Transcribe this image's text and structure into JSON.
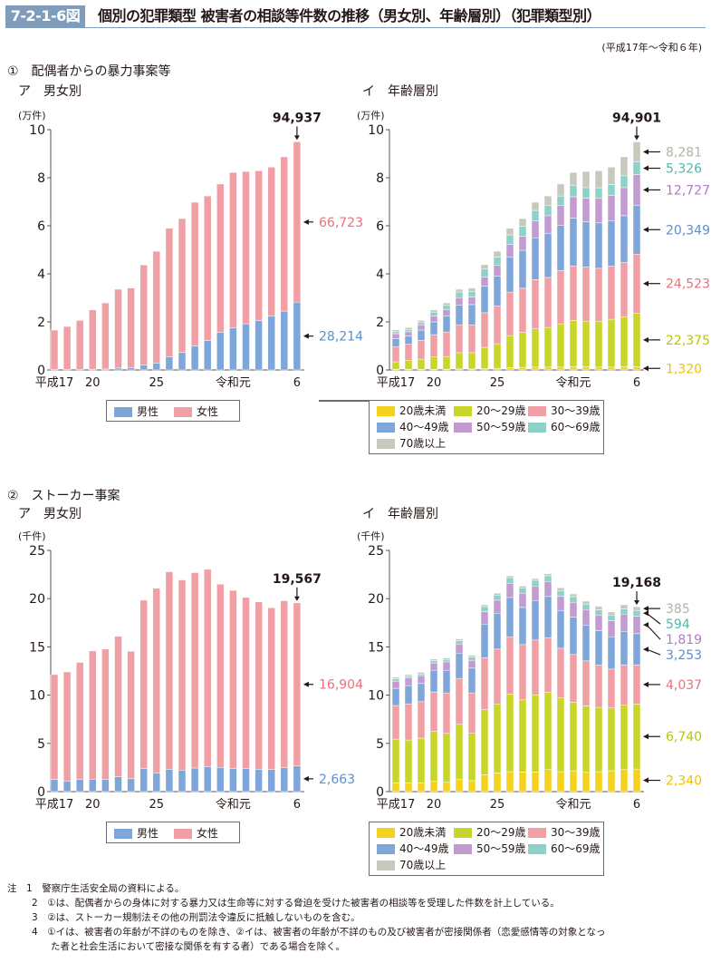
{
  "header": {
    "figure_number": "7-2-1-6図",
    "title": "個別の犯罪類型 被害者の相談等件数の推移（男女別、年齢層別）（犯罪類型別）",
    "period": "(平成17年～令和６年)"
  },
  "sections": [
    {
      "label": "①　配偶者からの暴力事案等",
      "left_sub": "ア　男女別",
      "right_sub": "イ　年齢層別"
    },
    {
      "label": "②　ストーカー事案",
      "left_sub": "ア　男女別",
      "right_sub": "イ　年齢層別"
    }
  ],
  "colors": {
    "male": "#7fa6d8",
    "female": "#f0a0a4",
    "age_under20": "#f5d21e",
    "age_20s": "#c8d62a",
    "age_30s": "#f0a0a4",
    "age_40s": "#7fa6d8",
    "age_50s": "#c29cd0",
    "age_60s": "#8ed1c8",
    "age_70plus": "#c8c9bd",
    "label_male": "#5b8fd0",
    "label_female": "#e8707b",
    "label_under20": "#f2c200",
    "label_20s": "#b8c800",
    "label_30s": "#e8707b",
    "label_40s": "#5b8fd0",
    "label_50s": "#b07cc4",
    "label_60s": "#4fb8ad",
    "label_70plus": "#b3b4a8"
  },
  "legends": {
    "sex": [
      {
        "key": "male",
        "label": "男性"
      },
      {
        "key": "female",
        "label": "女性"
      }
    ],
    "age": [
      {
        "key": "age_under20",
        "label": "20歳未満"
      },
      {
        "key": "age_20s",
        "label": "20～29歳"
      },
      {
        "key": "age_30s",
        "label": "30～39歳"
      },
      {
        "key": "age_40s",
        "label": "40～49歳"
      },
      {
        "key": "age_50s",
        "label": "50～59歳"
      },
      {
        "key": "age_60s",
        "label": "60～69歳"
      },
      {
        "key": "age_70plus",
        "label": "70歳以上"
      }
    ]
  },
  "chart_data": [
    {
      "id": "dv-sex",
      "type": "bar",
      "stacked": true,
      "title": "① ア 男女別",
      "ylabel": "(万件)",
      "ylim": [
        0,
        10
      ],
      "yticks": [
        0,
        2,
        4,
        6,
        8,
        10
      ],
      "categories": [
        "平成17",
        "18",
        "19",
        "20",
        "21",
        "22",
        "23",
        "24",
        "25",
        "26",
        "27",
        "28",
        "29",
        "30",
        "令和元",
        "2",
        "3",
        "4",
        "5",
        "6"
      ],
      "xtick_labels": [
        {
          "index": 0,
          "label": "平成17"
        },
        {
          "index": 3,
          "label": "20"
        },
        {
          "index": 8,
          "label": "25"
        },
        {
          "index": 14,
          "label": "令和元"
        },
        {
          "index": 19,
          "label": "6"
        }
      ],
      "series": [
        {
          "name": "男性",
          "color_key": "male",
          "values": [
            0.01,
            0.01,
            0.01,
            0.03,
            0.04,
            0.08,
            0.1,
            0.21,
            0.29,
            0.55,
            0.73,
            1.0,
            1.22,
            1.57,
            1.76,
            1.92,
            2.06,
            2.25,
            2.45,
            2.8214
          ]
        },
        {
          "name": "女性",
          "color_key": "female",
          "values": [
            1.65,
            1.8,
            2.05,
            2.47,
            2.75,
            3.28,
            3.31,
            4.16,
            4.65,
            5.35,
            5.57,
            5.98,
            6.02,
            6.17,
            6.46,
            6.34,
            6.23,
            6.19,
            6.42,
            6.6723
          ]
        }
      ],
      "total_label": "94,937",
      "series_labels": [
        {
          "series": "女性",
          "text": "66,723",
          "color_key": "label_female"
        },
        {
          "series": "男性",
          "text": "28,214",
          "color_key": "label_male"
        }
      ]
    },
    {
      "id": "dv-age",
      "type": "bar",
      "stacked": true,
      "title": "① イ 年齢層別",
      "ylabel": "(万件)",
      "ylim": [
        0,
        10
      ],
      "yticks": [
        0,
        2,
        4,
        6,
        8,
        10
      ],
      "categories": [
        "平成17",
        "18",
        "19",
        "20",
        "21",
        "22",
        "23",
        "24",
        "25",
        "26",
        "27",
        "28",
        "29",
        "30",
        "令和元",
        "2",
        "3",
        "4",
        "5",
        "6"
      ],
      "xtick_labels": [
        {
          "index": 0,
          "label": "平成17"
        },
        {
          "index": 3,
          "label": "20"
        },
        {
          "index": 8,
          "label": "25"
        },
        {
          "index": 14,
          "label": "令和元"
        },
        {
          "index": 19,
          "label": "6"
        }
      ],
      "series": [
        {
          "name": "20歳未満",
          "color_key": "age_under20",
          "values": [
            0.03,
            0.03,
            0.03,
            0.03,
            0.03,
            0.04,
            0.04,
            0.05,
            0.07,
            0.1,
            0.11,
            0.12,
            0.12,
            0.12,
            0.13,
            0.13,
            0.12,
            0.12,
            0.13,
            0.132
          ]
        },
        {
          "name": "20～29歳",
          "color_key": "age_20s",
          "values": [
            0.31,
            0.36,
            0.42,
            0.51,
            0.53,
            0.68,
            0.68,
            0.89,
            1.02,
            1.33,
            1.45,
            1.59,
            1.65,
            1.8,
            1.93,
            1.9,
            1.91,
            1.99,
            2.09,
            2.2375
          ]
        },
        {
          "name": "30～39歳",
          "color_key": "age_30s",
          "values": [
            0.63,
            0.68,
            0.78,
            0.93,
            1.02,
            1.16,
            1.16,
            1.44,
            1.57,
            1.81,
            1.84,
            2.05,
            2.08,
            2.21,
            2.27,
            2.25,
            2.2,
            2.22,
            2.26,
            2.4523
          ]
        },
        {
          "name": "40～49歳",
          "color_key": "age_40s",
          "values": [
            0.33,
            0.35,
            0.43,
            0.53,
            0.67,
            0.81,
            0.84,
            1.11,
            1.25,
            1.45,
            1.58,
            1.74,
            1.82,
            1.88,
            1.99,
            1.89,
            1.89,
            1.87,
            1.94,
            2.0349
          ]
        },
        {
          "name": "50～59歳",
          "color_key": "age_50s",
          "values": [
            0.21,
            0.17,
            0.22,
            0.25,
            0.25,
            0.32,
            0.32,
            0.37,
            0.44,
            0.54,
            0.59,
            0.7,
            0.75,
            0.83,
            0.89,
            0.98,
            1.02,
            1.06,
            1.17,
            1.2727
          ]
        },
        {
          "name": "60～69歳",
          "color_key": "age_60s",
          "values": [
            0.08,
            0.08,
            0.09,
            0.16,
            0.19,
            0.23,
            0.23,
            0.34,
            0.35,
            0.39,
            0.41,
            0.44,
            0.42,
            0.4,
            0.46,
            0.44,
            0.44,
            0.46,
            0.49,
            0.5326
          ]
        },
        {
          "name": "70歳以上",
          "color_key": "age_70plus",
          "values": [
            0.08,
            0.1,
            0.09,
            0.09,
            0.1,
            0.12,
            0.14,
            0.18,
            0.24,
            0.28,
            0.32,
            0.34,
            0.4,
            0.5,
            0.55,
            0.67,
            0.71,
            0.72,
            0.79,
            0.8281
          ]
        }
      ],
      "total_label": "94,901",
      "series_labels": [
        {
          "series": "70歳以上",
          "text": "8,281",
          "color_key": "label_70plus"
        },
        {
          "series": "60～69歳",
          "text": "5,326",
          "color_key": "label_60s"
        },
        {
          "series": "50～59歳",
          "text": "12,727",
          "color_key": "label_50s"
        },
        {
          "series": "40～49歳",
          "text": "20,349",
          "color_key": "label_40s"
        },
        {
          "series": "30～39歳",
          "text": "24,523",
          "color_key": "label_30s"
        },
        {
          "series": "20～29歳",
          "text": "22,375",
          "color_key": "label_20s"
        },
        {
          "series": "20歳未満",
          "text": "1,320",
          "color_key": "label_under20"
        }
      ]
    },
    {
      "id": "stalker-sex",
      "type": "bar",
      "stacked": true,
      "title": "② ア 男女別",
      "ylabel": "(千件)",
      "ylim": [
        0,
        25
      ],
      "yticks": [
        0,
        5,
        10,
        15,
        20,
        25
      ],
      "categories": [
        "平成17",
        "18",
        "19",
        "20",
        "21",
        "22",
        "23",
        "24",
        "25",
        "26",
        "27",
        "28",
        "29",
        "30",
        "令和元",
        "2",
        "3",
        "4",
        "5",
        "6"
      ],
      "xtick_labels": [
        {
          "index": 0,
          "label": "平成17"
        },
        {
          "index": 3,
          "label": "20"
        },
        {
          "index": 8,
          "label": "25"
        },
        {
          "index": 14,
          "label": "令和元"
        },
        {
          "index": 19,
          "label": "6"
        }
      ],
      "series": [
        {
          "name": "男性",
          "color_key": "male",
          "values": [
            1.25,
            1.1,
            1.25,
            1.29,
            1.25,
            1.54,
            1.35,
            2.41,
            1.94,
            2.32,
            2.23,
            2.45,
            2.6,
            2.51,
            2.41,
            2.41,
            2.32,
            2.29,
            2.48,
            2.663
          ]
        },
        {
          "name": "女性",
          "color_key": "female",
          "values": [
            10.88,
            11.31,
            12.14,
            13.29,
            13.52,
            14.57,
            13.2,
            17.43,
            19.13,
            20.47,
            19.71,
            20.25,
            20.44,
            18.99,
            18.44,
            17.72,
            17.34,
            16.77,
            17.3,
            16.904
          ]
        }
      ],
      "total_label": "19,567",
      "series_labels": [
        {
          "series": "女性",
          "text": "16,904",
          "color_key": "label_female"
        },
        {
          "series": "男性",
          "text": "2,663",
          "color_key": "label_male"
        }
      ]
    },
    {
      "id": "stalker-age",
      "type": "bar",
      "stacked": true,
      "title": "② イ 年齢層別",
      "ylabel": "(千件)",
      "ylim": [
        0,
        25
      ],
      "yticks": [
        0,
        5,
        10,
        15,
        20,
        25
      ],
      "categories": [
        "平成17",
        "18",
        "19",
        "20",
        "21",
        "22",
        "23",
        "24",
        "25",
        "26",
        "27",
        "28",
        "29",
        "30",
        "令和元",
        "2",
        "3",
        "4",
        "5",
        "6"
      ],
      "xtick_labels": [
        {
          "index": 0,
          "label": "平成17"
        },
        {
          "index": 3,
          "label": "20"
        },
        {
          "index": 8,
          "label": "25"
        },
        {
          "index": 14,
          "label": "令和元"
        },
        {
          "index": 19,
          "label": "6"
        }
      ],
      "series": [
        {
          "name": "20歳未満",
          "color_key": "age_under20",
          "values": [
            0.88,
            0.88,
            0.88,
            1.06,
            0.97,
            1.25,
            1.13,
            1.75,
            1.94,
            2.07,
            2.03,
            2.03,
            2.28,
            2.07,
            2.16,
            2.0,
            2.07,
            2.16,
            2.28,
            2.34
          ]
        },
        {
          "name": "20～29歳",
          "color_key": "age_20s",
          "values": [
            4.56,
            4.47,
            4.66,
            5.17,
            5.07,
            5.73,
            4.91,
            6.73,
            7.16,
            8.04,
            7.48,
            8.01,
            8.01,
            7.63,
            7.1,
            6.89,
            6.66,
            6.51,
            6.67,
            6.74
          ]
        },
        {
          "name": "30～39歳",
          "color_key": "age_30s",
          "values": [
            3.48,
            3.75,
            3.78,
            4.1,
            4.19,
            4.75,
            4.19,
            5.38,
            5.67,
            5.94,
            5.73,
            5.67,
            5.67,
            5.16,
            4.95,
            4.66,
            4.38,
            4.03,
            4.19,
            4.037
          ]
        },
        {
          "name": "40～49歳",
          "color_key": "age_40s",
          "values": [
            1.78,
            1.88,
            1.88,
            2.25,
            2.35,
            2.63,
            2.57,
            3.51,
            3.72,
            4.07,
            3.85,
            4.1,
            4.26,
            3.91,
            3.88,
            3.72,
            3.57,
            3.35,
            3.47,
            3.253
          ]
        },
        {
          "name": "50～59歳",
          "color_key": "age_50s",
          "values": [
            0.75,
            0.82,
            0.82,
            0.75,
            0.87,
            0.94,
            0.81,
            1.28,
            1.35,
            1.47,
            1.47,
            1.5,
            1.56,
            1.47,
            1.53,
            1.6,
            1.62,
            1.66,
            1.79,
            1.819
          ]
        },
        {
          "name": "60～69歳",
          "color_key": "age_60s",
          "values": [
            0.25,
            0.18,
            0.18,
            0.25,
            0.25,
            0.34,
            0.34,
            0.53,
            0.53,
            0.59,
            0.56,
            0.59,
            0.59,
            0.6,
            0.59,
            0.56,
            0.54,
            0.59,
            0.53,
            0.594
          ]
        },
        {
          "name": "70歳以上",
          "color_key": "age_70plus",
          "values": [
            0.16,
            0.16,
            0.16,
            0.16,
            0.16,
            0.19,
            0.19,
            0.19,
            0.19,
            0.19,
            0.19,
            0.19,
            0.22,
            0.28,
            0.28,
            0.31,
            0.37,
            0.32,
            0.44,
            0.385
          ]
        }
      ],
      "total_label": "19,168",
      "series_labels": [
        {
          "series": "70歳以上",
          "text": "385",
          "color_key": "label_70plus"
        },
        {
          "series": "60～69歳",
          "text": "594",
          "color_key": "label_60s"
        },
        {
          "series": "50～59歳",
          "text": "1,819",
          "color_key": "label_50s"
        },
        {
          "series": "40～49歳",
          "text": "3,253",
          "color_key": "label_40s"
        },
        {
          "series": "30～39歳",
          "text": "4,037",
          "color_key": "label_30s"
        },
        {
          "series": "20～29歳",
          "text": "6,740",
          "color_key": "label_20s"
        },
        {
          "series": "20歳未満",
          "text": "2,340",
          "color_key": "label_under20"
        }
      ]
    }
  ],
  "notes": {
    "prefix": "注",
    "items": [
      {
        "num": "1",
        "text": "警察庁生活安全局の資料による。"
      },
      {
        "num": "2",
        "text": "①は、配偶者からの身体に対する暴力又は生命等に対する脅迫を受けた被害者の相談等を受理した件数を計上している。"
      },
      {
        "num": "3",
        "text": "②は、ストーカー規制法その他の刑罰法令違反に抵触しないものを含む。"
      },
      {
        "num": "4",
        "text": "①イは、被害者の年齢が不詳のものを除き、②イは、被害者の年齢が不詳のもの及び被害者が密接関係者（恋愛感情等の対象となっ"
      },
      {
        "num": "",
        "text": "た者と社会生活において密接な関係を有する者）である場合を除く。"
      }
    ]
  }
}
